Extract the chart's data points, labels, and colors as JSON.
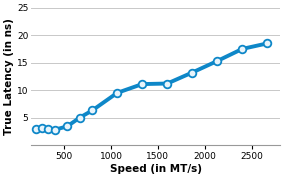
{
  "x": [
    200,
    266,
    333,
    400,
    533,
    667,
    800,
    1066,
    1333,
    1600,
    1866,
    2133,
    2400,
    2666
  ],
  "y": [
    3.0,
    3.2,
    3.0,
    2.8,
    3.4,
    5.0,
    6.3,
    9.5,
    11.1,
    11.2,
    13.2,
    15.3,
    17.5,
    18.5
  ],
  "line_color": "#0e87c8",
  "marker_facecolor": "#e8f4fb",
  "marker_edge_color": "#0e87c8",
  "xlabel": "Speed (in MT/s)",
  "ylabel": "True Latency (in ns)",
  "xlim": [
    150,
    2800
  ],
  "ylim": [
    0,
    25
  ],
  "xticks": [
    500,
    1000,
    1500,
    2000,
    2500
  ],
  "yticks": [
    5,
    10,
    15,
    20,
    25
  ],
  "bg_color": "#ffffff",
  "grid_color": "#c8c8c8",
  "line_width": 2.8,
  "marker_size": 5.5,
  "xlabel_fontsize": 7.5,
  "ylabel_fontsize": 7.5,
  "tick_fontsize": 6.5
}
